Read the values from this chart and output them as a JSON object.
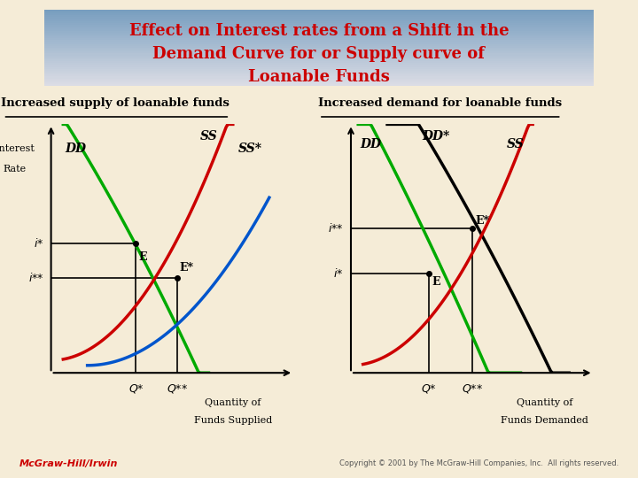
{
  "title_line1": "Effect on Interest rates from a Shift in the",
  "title_line2": "Demand Curve for or Supply curve of",
  "title_line3": "Loanable Funds",
  "title_bg_color1": "#7ab0cc",
  "title_bg_color2": "#b0c8d8",
  "bg_color": "#f5ecd7",
  "title_text_color": "#cc0000",
  "left_subtitle": "Increased supply of loanable funds",
  "right_subtitle": "Increased demand for loanable funds",
  "subtitle_color": "#000000",
  "left_ylabel": [
    "Interest",
    "Rate"
  ],
  "left_xlabel": [
    "Quantity of",
    "Funds Supplied"
  ],
  "right_xlabel": [
    "Quantity of",
    "Funds Demanded"
  ],
  "footer_left": "McGraw-Hill/Irwin",
  "footer_right": "Copyright © 2001 by The McGraw-Hill Companies, Inc.  All rights reserved.",
  "footer_color": "#cc0000",
  "curve_green": "#00aa00",
  "curve_red": "#cc0000",
  "curve_blue": "#0055cc",
  "curve_black": "#000000"
}
